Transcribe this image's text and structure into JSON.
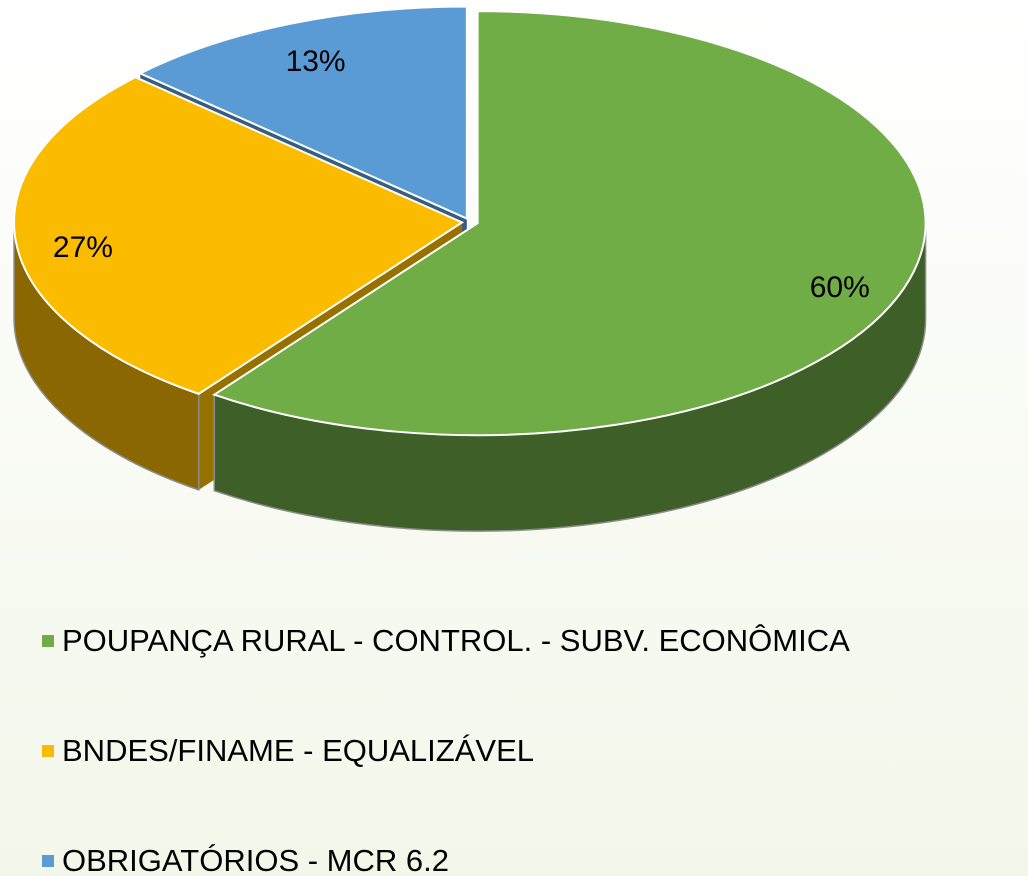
{
  "chart_data": {
    "type": "pie3d",
    "categories": [
      "POUPANÇA RURAL - CONTROL. - SUBV. ECONÔMICA",
      "BNDES/FINAME - EQUALIZÁVEL",
      "OBRIGATÓRIOS - MCR 6.2"
    ],
    "values": [
      60,
      27,
      13
    ],
    "value_labels": [
      "60%",
      "27%",
      "13%"
    ],
    "colors": [
      "#70ad47",
      "#fbbc00",
      "#5b9bd5"
    ]
  }
}
